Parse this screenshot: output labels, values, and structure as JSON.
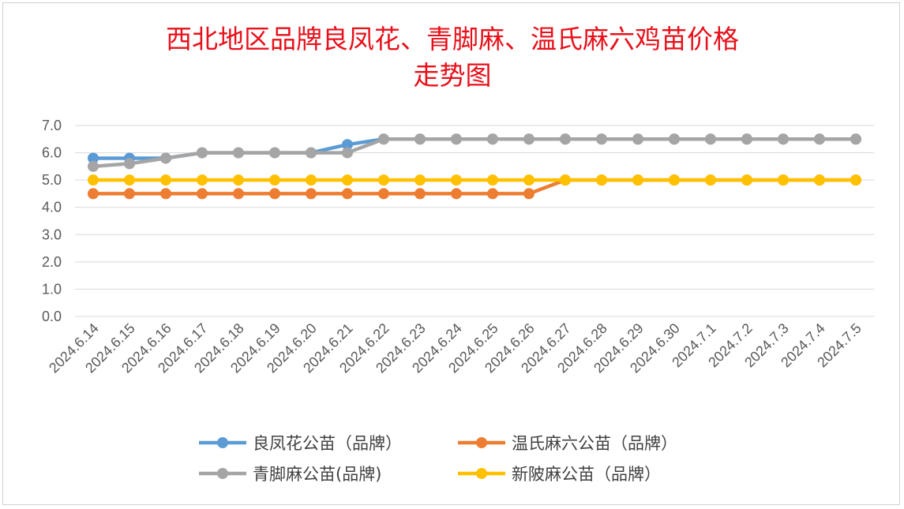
{
  "chart_data": {
    "type": "line",
    "title_lines": [
      "西北地区品牌良凤花、青脚麻、温氏麻六鸡苗价格",
      "走势图"
    ],
    "xlabel": "",
    "ylabel": "",
    "ylim": [
      0,
      7
    ],
    "ytick_labels": [
      "0.0",
      "1.0",
      "2.0",
      "3.0",
      "4.0",
      "5.0",
      "6.0",
      "7.0"
    ],
    "ytick_values": [
      0,
      1,
      2,
      3,
      4,
      5,
      6,
      7
    ],
    "grid": true,
    "legend_position": "bottom",
    "categories": [
      "2024.6.14",
      "2024.6.15",
      "2024.6.16",
      "2024.6.17",
      "2024.6.18",
      "2024.6.19",
      "2024.6.20",
      "2024.6.21",
      "2024.6.22",
      "2024.6.23",
      "2024.6.24",
      "2024.6.25",
      "2024.6.26",
      "2024.6.27",
      "2024.6.28",
      "2024.6.29",
      "2024.6.30",
      "2024.7.1",
      "2024.7.2",
      "2024.7.3",
      "2024.7.4",
      "2024.7.5"
    ],
    "series": [
      {
        "name": "良凤花公苗（品牌）",
        "color": "#5b9bd5",
        "values": [
          5.8,
          5.8,
          5.8,
          6.0,
          6.0,
          6.0,
          6.0,
          6.3,
          6.5,
          6.5,
          6.5,
          6.5,
          6.5,
          6.5,
          6.5,
          6.5,
          6.5,
          6.5,
          6.5,
          6.5,
          6.5,
          6.5
        ]
      },
      {
        "name": "温氏麻六公苗（品牌）",
        "color": "#ed7d31",
        "values": [
          4.5,
          4.5,
          4.5,
          4.5,
          4.5,
          4.5,
          4.5,
          4.5,
          4.5,
          4.5,
          4.5,
          4.5,
          4.5,
          5.0,
          5.0,
          5.0,
          5.0,
          5.0,
          5.0,
          5.0,
          5.0,
          5.0
        ]
      },
      {
        "name": "青脚麻公苗(品牌)",
        "color": "#a5a5a5",
        "values": [
          5.5,
          5.6,
          5.8,
          6.0,
          6.0,
          6.0,
          6.0,
          6.0,
          6.5,
          6.5,
          6.5,
          6.5,
          6.5,
          6.5,
          6.5,
          6.5,
          6.5,
          6.5,
          6.5,
          6.5,
          6.5,
          6.5
        ]
      },
      {
        "name": "新陂麻公苗（品牌）",
        "color": "#ffc000",
        "values": [
          5.0,
          5.0,
          5.0,
          5.0,
          5.0,
          5.0,
          5.0,
          5.0,
          5.0,
          5.0,
          5.0,
          5.0,
          5.0,
          5.0,
          5.0,
          5.0,
          5.0,
          5.0,
          5.0,
          5.0,
          5.0,
          5.0
        ]
      }
    ]
  }
}
